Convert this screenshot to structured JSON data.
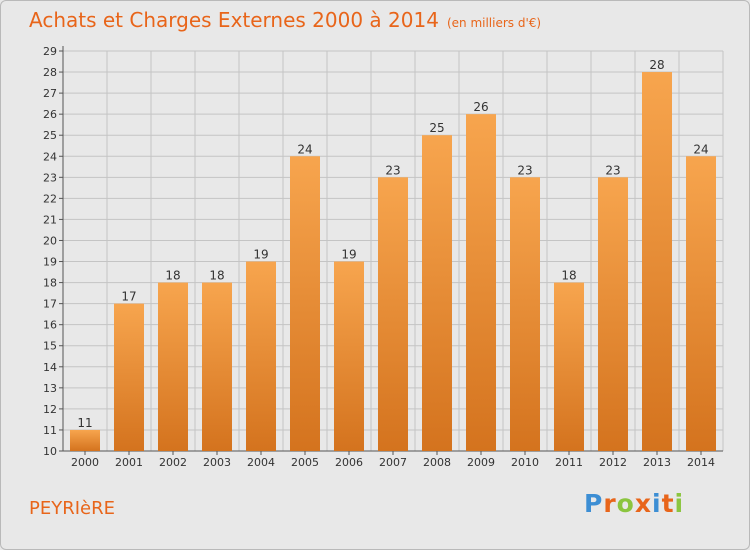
{
  "title": "Achats et Charges Externes 2000 à 2014",
  "unit": "(en milliers d'€)",
  "place": "PEYRIèRE",
  "logo": {
    "text": "Proxiti",
    "colors": [
      "#3c8ed4",
      "#e8651a",
      "#8bc53f",
      "#e8651a",
      "#3c8ed4",
      "#e8651a",
      "#8bc53f"
    ]
  },
  "colors": {
    "accent": "#e8651a",
    "bar_top": "#f7a54e",
    "bar_bottom": "#d4731e",
    "grid": "#c4c4c4"
  },
  "chart_data": {
    "type": "bar",
    "title": "Achats et Charges Externes 2000 à 2014",
    "xlabel": "",
    "ylabel": "",
    "categories": [
      "2000",
      "2001",
      "2002",
      "2003",
      "2004",
      "2005",
      "2006",
      "2007",
      "2008",
      "2009",
      "2010",
      "2011",
      "2012",
      "2013",
      "2014"
    ],
    "values": [
      11,
      17,
      18,
      18,
      19,
      24,
      19,
      23,
      25,
      26,
      23,
      18,
      23,
      28,
      24
    ],
    "ylim": [
      10,
      29
    ],
    "yticks": [
      10,
      11,
      12,
      13,
      14,
      15,
      16,
      17,
      18,
      19,
      20,
      21,
      22,
      23,
      24,
      25,
      26,
      27,
      28,
      29
    ],
    "grid": true
  }
}
